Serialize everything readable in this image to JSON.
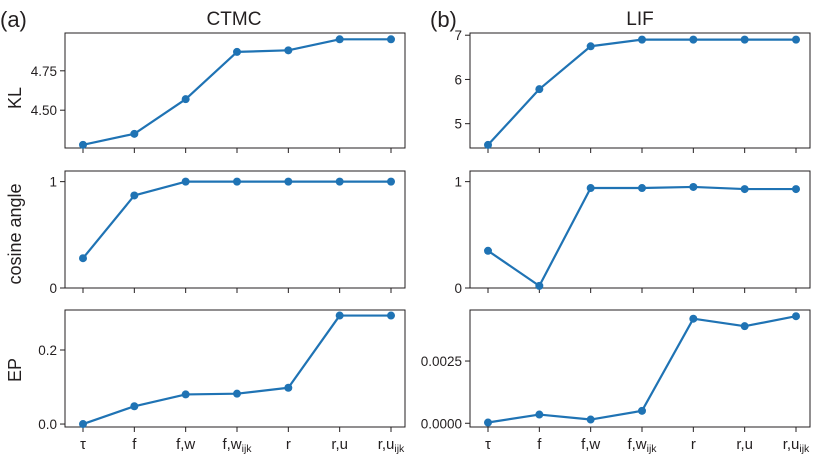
{
  "colors": {
    "series": "#1f73b4",
    "axis": "#231f20"
  },
  "panel_labels": [
    "(a)",
    "(b)"
  ],
  "column_titles": [
    "CTMC",
    "LIF"
  ],
  "row_ylabels": [
    "KL",
    "cosine angle",
    "EP"
  ],
  "chart_data": [
    {
      "type": "line",
      "title": "CTMC",
      "ylabel": "KL",
      "categories": [
        "τ",
        "f",
        "f,w",
        "f,w_ijk",
        "r",
        "r,u",
        "r,u_ijk"
      ],
      "values": [
        4.28,
        4.35,
        4.57,
        4.87,
        4.88,
        4.95,
        4.95
      ],
      "ylim": [
        4.26,
        4.99
      ],
      "yticks": [
        4.5,
        4.75
      ],
      "ytick_labels": [
        "4.50",
        "4.75"
      ]
    },
    {
      "type": "line",
      "title": "LIF",
      "ylabel": "",
      "categories": [
        "τ",
        "f",
        "f,w",
        "f,w_ijk",
        "r",
        "r,u",
        "r,u_ijk"
      ],
      "values": [
        4.52,
        5.78,
        6.75,
        6.9,
        6.9,
        6.9,
        6.9
      ],
      "ylim": [
        4.45,
        7.05
      ],
      "yticks": [
        5,
        6,
        7
      ],
      "ytick_labels": [
        "5",
        "6",
        "7"
      ]
    },
    {
      "type": "line",
      "title": "",
      "ylabel": "cosine angle",
      "categories": [
        "τ",
        "f",
        "f,w",
        "f,w_ijk",
        "r",
        "r,u",
        "r,u_ijk"
      ],
      "values": [
        0.28,
        0.87,
        1.0,
        1.0,
        1.0,
        1.0,
        1.0
      ],
      "ylim": [
        0,
        1.1
      ],
      "yticks": [
        0,
        1
      ],
      "ytick_labels": [
        "0",
        "1"
      ]
    },
    {
      "type": "line",
      "title": "",
      "ylabel": "",
      "categories": [
        "τ",
        "f",
        "f,w",
        "f,w_ijk",
        "r",
        "r,u",
        "r,u_ijk"
      ],
      "values": [
        0.35,
        0.02,
        0.94,
        0.94,
        0.95,
        0.93,
        0.93
      ],
      "ylim": [
        0,
        1.1
      ],
      "yticks": [
        0,
        1
      ],
      "ytick_labels": [
        "0",
        "1"
      ]
    },
    {
      "type": "line",
      "title": "",
      "ylabel": "EP",
      "categories": [
        "τ",
        "f",
        "f,w",
        "f,w_ijk",
        "r",
        "r,u",
        "r,u_ijk"
      ],
      "values": [
        0.0,
        0.048,
        0.08,
        0.082,
        0.098,
        0.293,
        0.293
      ],
      "ylim": [
        -0.008,
        0.308
      ],
      "yticks": [
        0.0,
        0.2
      ],
      "ytick_labels": [
        "0.0",
        "0.2"
      ]
    },
    {
      "type": "line",
      "title": "",
      "ylabel": "",
      "categories": [
        "τ",
        "f",
        "f,w",
        "f,w_ijk",
        "r",
        "r,u",
        "r,u_ijk"
      ],
      "values": [
        3e-05,
        0.00035,
        0.00015,
        0.0005,
        0.0042,
        0.0039,
        0.0043
      ],
      "ylim": [
        -0.00015,
        0.00455
      ],
      "yticks": [
        0.0,
        0.0025
      ],
      "ytick_labels": [
        "0.0000",
        "0.0025"
      ]
    }
  ],
  "xtick_labels": [
    {
      "main": "τ",
      "sub": ""
    },
    {
      "main": "f",
      "sub": ""
    },
    {
      "main": "f,w",
      "sub": ""
    },
    {
      "main": "f,w",
      "sub": "ijk"
    },
    {
      "main": "r",
      "sub": ""
    },
    {
      "main": "r,u",
      "sub": ""
    },
    {
      "main": "r,u",
      "sub": "ijk"
    }
  ]
}
